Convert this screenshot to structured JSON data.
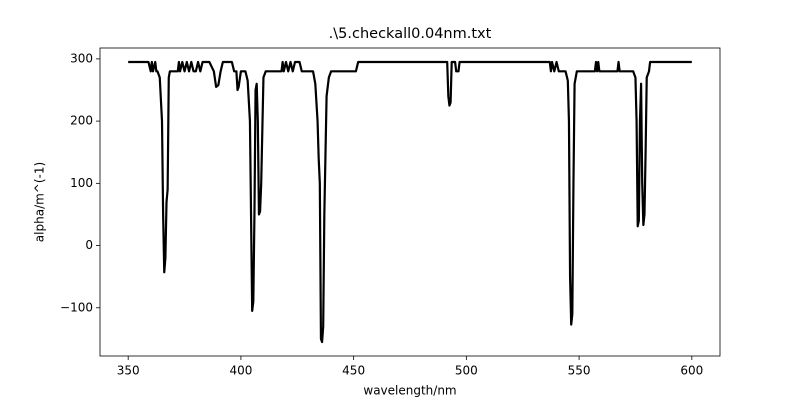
{
  "chart_data": {
    "type": "line",
    "title": ".\\5.checkall0.04nm.txt",
    "xlabel": "wavelength/nm",
    "ylabel": "alpha/m^(-1)",
    "color": "#000000",
    "xlim": [
      337.5,
      612.5
    ],
    "ylim": [
      -177.5,
      317.5
    ],
    "xticks": [
      350,
      400,
      450,
      500,
      550,
      600
    ],
    "yticks": [
      {
        "value": -100,
        "label": "−100"
      },
      0,
      100,
      200,
      300
    ],
    "x": [
      350,
      359,
      360,
      360.5,
      361,
      362,
      362.5,
      363,
      364,
      365,
      365.5,
      366,
      366.5,
      367,
      367.5,
      368,
      368.5,
      372,
      372.5,
      373,
      374,
      375,
      376,
      377,
      378,
      379,
      380,
      381,
      382,
      383,
      386,
      388,
      389,
      390,
      391,
      392,
      396,
      397,
      398,
      398.5,
      399,
      400,
      402,
      403,
      404,
      404.5,
      405,
      405.5,
      406,
      406.5,
      407,
      407.5,
      408,
      408.5,
      409,
      410,
      411,
      418,
      418.5,
      419,
      420,
      421,
      422,
      423,
      424,
      426,
      427,
      432,
      433,
      434,
      434.5,
      435,
      435.5,
      436,
      436.5,
      437,
      438,
      439,
      440,
      451,
      452,
      491.5,
      492,
      492.5,
      493,
      493.5,
      495,
      495.5,
      496.5,
      497,
      537,
      537.5,
      538,
      539,
      540,
      541,
      544,
      545,
      545.5,
      546,
      546.5,
      547,
      547.5,
      548,
      549,
      557,
      557.5,
      558,
      558.5,
      559,
      567,
      567.5,
      568,
      574,
      575,
      575.5,
      576,
      576.5,
      577,
      577.5,
      578,
      578.5,
      579,
      579.5,
      580,
      581,
      581.5,
      600
    ],
    "values": [
      295,
      295,
      280,
      295,
      280,
      295,
      280,
      280,
      270,
      200,
      50,
      -43,
      -20,
      70,
      90,
      270,
      280,
      280,
      295,
      280,
      295,
      280,
      295,
      280,
      295,
      280,
      280,
      295,
      280,
      295,
      295,
      280,
      255,
      258,
      280,
      295,
      295,
      280,
      280,
      250,
      255,
      280,
      280,
      265,
      200,
      50,
      -105,
      -90,
      50,
      250,
      260,
      200,
      50,
      55,
      100,
      270,
      280,
      280,
      295,
      280,
      295,
      280,
      295,
      280,
      295,
      295,
      280,
      280,
      260,
      200,
      140,
      100,
      -150,
      -155,
      -130,
      50,
      240,
      270,
      280,
      280,
      295,
      295,
      240,
      225,
      230,
      295,
      295,
      280,
      280,
      295,
      295,
      280,
      295,
      280,
      295,
      280,
      280,
      265,
      200,
      -50,
      -127,
      -110,
      100,
      260,
      280,
      280,
      295,
      280,
      295,
      280,
      280,
      295,
      280,
      280,
      270,
      200,
      31,
      40,
      200,
      260,
      100,
      33,
      50,
      150,
      270,
      280,
      295,
      295
    ]
  }
}
